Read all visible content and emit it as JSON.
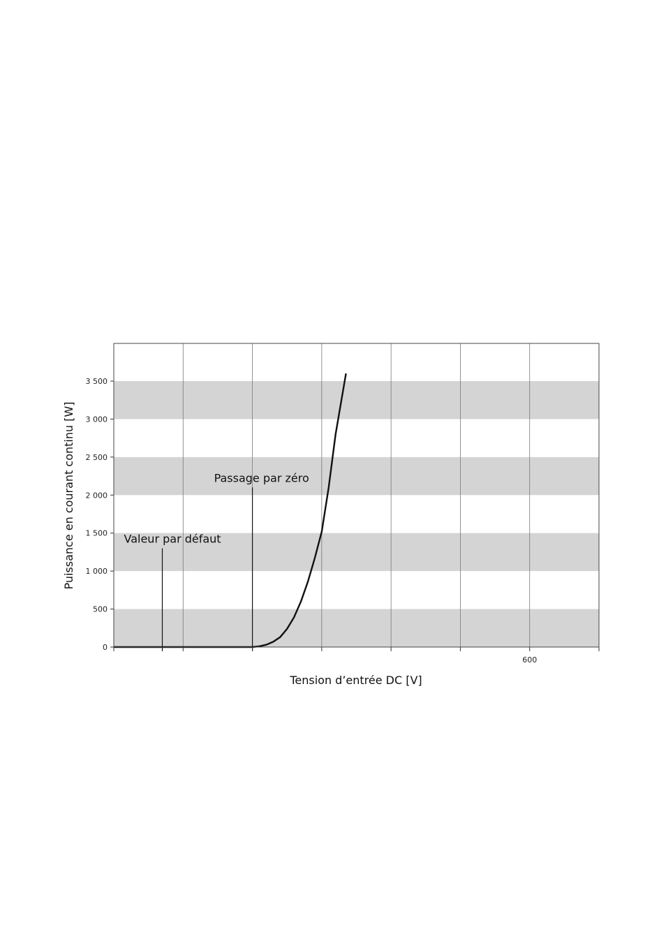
{
  "chart_data": {
    "type": "line",
    "title": "",
    "xlabel": "Tension d’entrée DC [V]",
    "ylabel": "Puissance en courant continu [W]",
    "xlim": [
      0,
      700
    ],
    "ylim": [
      0,
      4000
    ],
    "x_ticks": [
      0,
      100,
      200,
      300,
      400,
      500,
      600,
      700
    ],
    "x_tick_labels": [
      {
        "x": 600,
        "label": "600"
      }
    ],
    "y_ticks": [
      0,
      500,
      1000,
      1500,
      2000,
      2500,
      3000,
      3500
    ],
    "y_tick_labels": [
      "0",
      "500",
      "1 000",
      "1 500",
      "2 000",
      "2 500",
      "3 000",
      "3 500"
    ],
    "banded_background": true,
    "grid": true,
    "series": [
      {
        "x": [
          0,
          200,
          210,
          220,
          230,
          240,
          250,
          260,
          270,
          280,
          290,
          300,
          310,
          320,
          335
        ],
        "values": [
          0,
          0,
          10,
          30,
          70,
          130,
          240,
          390,
          600,
          860,
          1170,
          1520,
          2100,
          2800,
          3600
        ]
      }
    ],
    "annotations": [
      {
        "label": "Valeur par défaut",
        "x": 70,
        "y_top": 1300
      },
      {
        "label": "Passage par zéro",
        "x": 200,
        "y_top": 2100
      }
    ],
    "legend": "none"
  }
}
